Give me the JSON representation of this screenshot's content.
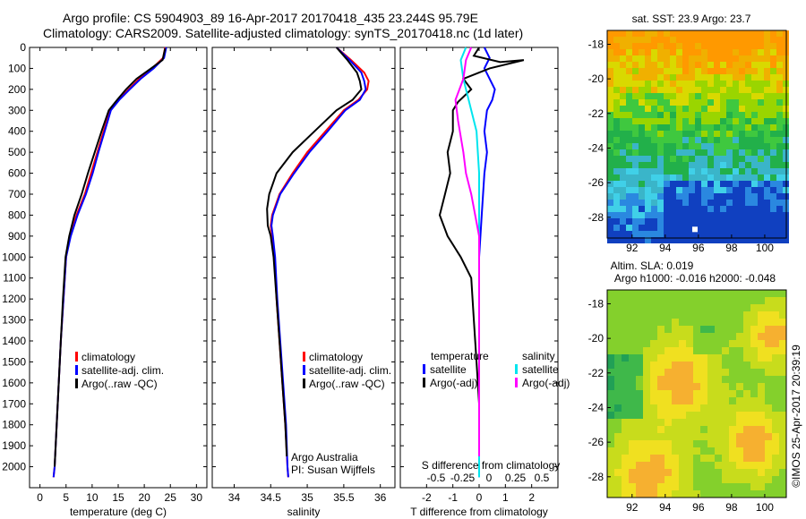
{
  "header": {
    "line1": "Argo profile: CS 5904903_89 16-Apr-2017 20170418_435 23.244S 95.79E",
    "line2": "Climatology: CARS2009. Satellite-adjusted climatology: synTS_20170418.nc (1d later)"
  },
  "colors": {
    "climatology": "#ff0000",
    "satellite": "#0000ff",
    "argo": "#000000",
    "sal_sat": "#00e5ee",
    "sal_argo": "#ff00ff"
  },
  "chart_data": [
    {
      "type": "line",
      "xlabel": "temperature (deg C)",
      "ylim": [
        2100,
        0
      ],
      "xlim": [
        -2,
        32
      ],
      "xticks": [
        0,
        5,
        10,
        15,
        20,
        25,
        30
      ],
      "yticks": [
        0,
        100,
        200,
        300,
        400,
        500,
        600,
        700,
        800,
        900,
        1000,
        1100,
        1200,
        1300,
        1400,
        1500,
        1600,
        1700,
        1800,
        1900,
        2000
      ],
      "legend": [
        "climatology",
        "satellite-adj. clim.",
        "Argo(..raw -QC)"
      ],
      "series": [
        {
          "name": "climatology",
          "color": "#ff0000",
          "points": [
            [
              24.0,
              0
            ],
            [
              23.6,
              50
            ],
            [
              21.5,
              100
            ],
            [
              19.0,
              150
            ],
            [
              17.0,
              200
            ],
            [
              15.0,
              250
            ],
            [
              13.5,
              300
            ],
            [
              12.2,
              400
            ],
            [
              11.0,
              500
            ],
            [
              9.8,
              600
            ],
            [
              8.6,
              700
            ],
            [
              7.0,
              800
            ],
            [
              5.8,
              900
            ],
            [
              5.0,
              1000
            ],
            [
              4.5,
              1200
            ],
            [
              4.0,
              1400
            ],
            [
              3.6,
              1600
            ],
            [
              3.2,
              1800
            ],
            [
              2.8,
              2000
            ],
            [
              2.6,
              2050
            ]
          ]
        },
        {
          "name": "satellite-adj. clim.",
          "color": "#0000ff",
          "points": [
            [
              24.2,
              0
            ],
            [
              23.8,
              50
            ],
            [
              21.8,
              100
            ],
            [
              19.3,
              150
            ],
            [
              17.2,
              200
            ],
            [
              15.2,
              250
            ],
            [
              13.6,
              300
            ],
            [
              12.4,
              400
            ],
            [
              11.2,
              500
            ],
            [
              10.1,
              600
            ],
            [
              8.8,
              700
            ],
            [
              7.2,
              800
            ],
            [
              5.9,
              900
            ],
            [
              5.0,
              1000
            ],
            [
              4.5,
              1200
            ],
            [
              4.0,
              1400
            ],
            [
              3.6,
              1600
            ],
            [
              3.2,
              1800
            ],
            [
              2.8,
              2000
            ],
            [
              2.6,
              2050
            ]
          ]
        },
        {
          "name": "Argo(..raw -QC)",
          "color": "#000000",
          "points": [
            [
              24.0,
              5
            ],
            [
              23.5,
              60
            ],
            [
              21.3,
              100
            ],
            [
              18.5,
              150
            ],
            [
              16.5,
              200
            ],
            [
              14.8,
              250
            ],
            [
              13.2,
              300
            ],
            [
              11.8,
              400
            ],
            [
              10.5,
              500
            ],
            [
              9.2,
              600
            ],
            [
              8.0,
              700
            ],
            [
              6.6,
              800
            ],
            [
              5.6,
              900
            ],
            [
              4.9,
              1000
            ],
            [
              4.4,
              1200
            ],
            [
              4.0,
              1400
            ],
            [
              3.6,
              1600
            ],
            [
              3.2,
              1800
            ],
            [
              2.8,
              2000
            ]
          ]
        }
      ]
    },
    {
      "type": "line",
      "xlabel": "salinity",
      "xlim": [
        33.7,
        36.2
      ],
      "xticks": [
        34,
        34.5,
        35,
        35.5,
        36
      ],
      "legend": [
        "climatology",
        "satellite-adj. clim.",
        "Argo(..raw -QC)"
      ],
      "annotation": [
        "Argo Australia",
        "PI: Susan Wijffels"
      ],
      "series": [
        {
          "name": "climatology",
          "color": "#ff0000",
          "points": [
            [
              35.4,
              0
            ],
            [
              35.6,
              60
            ],
            [
              35.78,
              120
            ],
            [
              35.84,
              160
            ],
            [
              35.82,
              200
            ],
            [
              35.7,
              250
            ],
            [
              35.5,
              300
            ],
            [
              35.25,
              400
            ],
            [
              35.0,
              500
            ],
            [
              34.8,
              600
            ],
            [
              34.62,
              700
            ],
            [
              34.52,
              800
            ],
            [
              34.5,
              850
            ],
            [
              34.52,
              900
            ],
            [
              34.55,
              1000
            ],
            [
              34.58,
              1200
            ],
            [
              34.62,
              1400
            ],
            [
              34.66,
              1600
            ],
            [
              34.7,
              1800
            ],
            [
              34.73,
              2000
            ],
            [
              34.74,
              2050
            ]
          ]
        },
        {
          "name": "satellite-adj. clim.",
          "color": "#0000ff",
          "points": [
            [
              35.4,
              0
            ],
            [
              35.58,
              60
            ],
            [
              35.74,
              120
            ],
            [
              35.78,
              160
            ],
            [
              35.8,
              200
            ],
            [
              35.72,
              250
            ],
            [
              35.52,
              300
            ],
            [
              35.28,
              400
            ],
            [
              35.03,
              500
            ],
            [
              34.82,
              600
            ],
            [
              34.63,
              700
            ],
            [
              34.53,
              800
            ],
            [
              34.51,
              850
            ],
            [
              34.53,
              900
            ],
            [
              34.56,
              1000
            ],
            [
              34.59,
              1200
            ],
            [
              34.63,
              1400
            ],
            [
              34.67,
              1600
            ],
            [
              34.71,
              1800
            ],
            [
              34.73,
              2000
            ],
            [
              34.74,
              2050
            ]
          ]
        },
        {
          "name": "Argo(..raw -QC)",
          "color": "#000000",
          "points": [
            [
              35.4,
              0
            ],
            [
              35.55,
              60
            ],
            [
              35.68,
              120
            ],
            [
              35.72,
              160
            ],
            [
              35.74,
              200
            ],
            [
              35.62,
              250
            ],
            [
              35.4,
              300
            ],
            [
              35.1,
              400
            ],
            [
              34.8,
              500
            ],
            [
              34.58,
              600
            ],
            [
              34.48,
              700
            ],
            [
              34.45,
              770
            ],
            [
              34.46,
              850
            ],
            [
              34.5,
              900
            ],
            [
              34.54,
              1000
            ],
            [
              34.58,
              1200
            ],
            [
              34.62,
              1400
            ],
            [
              34.66,
              1600
            ],
            [
              34.7,
              1800
            ],
            [
              34.72,
              1950
            ]
          ]
        }
      ]
    },
    {
      "type": "line",
      "xlabel": "T difference from climatology",
      "xlabel2": "S difference from climatology",
      "xlim": [
        -3,
        3
      ],
      "xticks": [
        -2,
        -1,
        0,
        1,
        2
      ],
      "xticks_top": [
        -0.5,
        -0.25,
        0,
        0.25,
        0.5
      ],
      "legend_left_title": "temperature",
      "legend_right_title": "salinity",
      "legend": [
        "satellite",
        "Argo(-adj)",
        "satellite",
        "Argo(-adj)"
      ],
      "series": [
        {
          "name": "temperature satellite",
          "color": "#0000ff",
          "points": [
            [
              0.2,
              0
            ],
            [
              0.4,
              50
            ],
            [
              0.2,
              100
            ],
            [
              0.6,
              200
            ],
            [
              0.5,
              250
            ],
            [
              0.3,
              300
            ],
            [
              0.2,
              400
            ],
            [
              0.3,
              500
            ],
            [
              0.2,
              600
            ],
            [
              0.1,
              800
            ],
            [
              0.0,
              1000
            ],
            [
              0.0,
              1200
            ],
            [
              0.0,
              1400
            ],
            [
              0.0,
              1600
            ],
            [
              0.0,
              2050
            ]
          ]
        },
        {
          "name": "temperature Argo(-adj)",
          "color": "#000000",
          "points": [
            [
              0.0,
              0
            ],
            [
              -0.2,
              40
            ],
            [
              0.8,
              70
            ],
            [
              1.7,
              60
            ],
            [
              0.4,
              100
            ],
            [
              -0.6,
              150
            ],
            [
              -0.3,
              200
            ],
            [
              -0.8,
              260
            ],
            [
              -1.0,
              300
            ],
            [
              -1.0,
              400
            ],
            [
              -1.2,
              500
            ],
            [
              -1.1,
              600
            ],
            [
              -1.3,
              700
            ],
            [
              -1.5,
              800
            ],
            [
              -1.2,
              900
            ],
            [
              -0.7,
              1000
            ],
            [
              -0.3,
              1100
            ],
            [
              -0.2,
              1300
            ],
            [
              -0.1,
              1500
            ],
            [
              0.0,
              1700
            ],
            [
              0.0,
              1950
            ]
          ]
        },
        {
          "name": "salinity satellite",
          "color": "#00e5ee",
          "points": [
            [
              -0.5,
              0
            ],
            [
              -0.7,
              60
            ],
            [
              -0.6,
              150
            ],
            [
              -0.4,
              250
            ],
            [
              -0.1,
              400
            ],
            [
              0.0,
              600
            ],
            [
              0.0,
              800
            ],
            [
              0.0,
              1000
            ],
            [
              0.0,
              1200
            ],
            [
              0.0,
              1400
            ],
            [
              0.0,
              1600
            ],
            [
              0.0,
              2050
            ]
          ]
        },
        {
          "name": "salinity Argo(-adj)",
          "color": "#ff00ff",
          "points": [
            [
              -0.3,
              0
            ],
            [
              -0.5,
              60
            ],
            [
              -0.6,
              150
            ],
            [
              -0.9,
              250
            ],
            [
              -0.8,
              350
            ],
            [
              -0.6,
              500
            ],
            [
              -0.5,
              600
            ],
            [
              -0.3,
              700
            ],
            [
              0.0,
              900
            ],
            [
              0.0,
              1100
            ],
            [
              0.0,
              1300
            ],
            [
              0.0,
              1500
            ],
            [
              0.0,
              1700
            ],
            [
              0.0,
              1950
            ]
          ]
        }
      ]
    },
    {
      "type": "heatmap",
      "title": "sat. SST: 23.9 Argo: 23.7",
      "xticks": [
        92,
        94,
        96,
        98,
        100
      ],
      "yticks": [
        -18,
        -20,
        -22,
        -24,
        -26,
        -28
      ]
    },
    {
      "type": "heatmap",
      "title": "Altim. SLA: 0.019",
      "subtitle": "Argo h1000: -0.016 h2000: -0.048",
      "xticks": [
        92,
        94,
        96,
        98,
        100
      ],
      "yticks": [
        -18,
        -20,
        -22,
        -24,
        -26,
        -28
      ]
    }
  ],
  "side_label": "©IMOS 25-Apr-2017 20:39:19"
}
